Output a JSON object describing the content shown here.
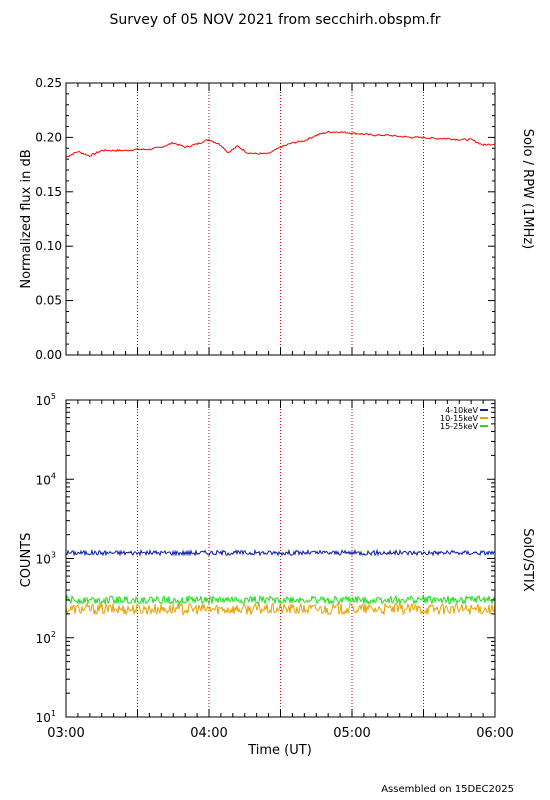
{
  "title": "Survey of 05 NOV 2021 from secchirh.obspm.fr",
  "footer": "Assembled on 15DEC2025",
  "colors": {
    "rpw": "#ff0000",
    "stix_4_10": "#0a1ea0",
    "stix_10_15": "#e8a000",
    "stix_15_25": "#22dd22",
    "marker": "#cc0000"
  },
  "chart_data": [
    {
      "type": "line",
      "ylabel": "Normalized flux in dB",
      "right_label": "Solo / RPW (1MHz)",
      "xlim": [
        "03:00",
        "06:00"
      ],
      "ylim": [
        0.0,
        0.25
      ],
      "y_ticks": [
        "0.00",
        "0.05",
        "0.10",
        "0.15",
        "0.20",
        "0.25"
      ],
      "markers": [
        "03:30",
        "04:00",
        "04:30",
        "05:00",
        "05:30"
      ],
      "series": [
        {
          "color": "#ff0000",
          "x": [
            "03:00",
            "03:05",
            "03:10",
            "03:15",
            "03:20",
            "03:25",
            "03:30",
            "03:35",
            "03:40",
            "03:45",
            "03:50",
            "03:55",
            "04:00",
            "04:05",
            "04:08",
            "04:12",
            "04:16",
            "04:20",
            "04:25",
            "04:30",
            "04:35",
            "04:40",
            "04:45",
            "04:50",
            "04:55",
            "05:00",
            "05:05",
            "05:10",
            "05:15",
            "05:20",
            "05:25",
            "05:30",
            "05:35",
            "05:40",
            "05:45",
            "05:50",
            "05:55",
            "06:00"
          ],
          "values": [
            0.182,
            0.187,
            0.183,
            0.188,
            0.188,
            0.188,
            0.189,
            0.189,
            0.191,
            0.195,
            0.191,
            0.194,
            0.198,
            0.193,
            0.186,
            0.192,
            0.186,
            0.185,
            0.185,
            0.191,
            0.195,
            0.197,
            0.202,
            0.205,
            0.205,
            0.204,
            0.203,
            0.202,
            0.202,
            0.201,
            0.2,
            0.2,
            0.199,
            0.199,
            0.198,
            0.198,
            0.193,
            0.194
          ]
        }
      ]
    },
    {
      "type": "line",
      "ylabel": "COUNTS",
      "right_label": "SolO/STIX",
      "xlabel": "Time (UT)",
      "xlim": [
        "03:00",
        "06:00"
      ],
      "ylim": [
        10,
        100000
      ],
      "yscale": "log",
      "x_ticks": [
        "03:00",
        "04:00",
        "05:00",
        "06:00"
      ],
      "markers": [
        "03:30",
        "04:00",
        "04:30",
        "05:00",
        "05:30"
      ],
      "legend_position": "top-right",
      "series": [
        {
          "name": "4-10keV",
          "color": "#0a1ea0",
          "level": 1180,
          "jitter": 0.03
        },
        {
          "name": "10-15keV",
          "color": "#e8a000",
          "level": 230,
          "jitter": 0.07
        },
        {
          "name": "15-25keV",
          "color": "#22dd22",
          "level": 300,
          "jitter": 0.05
        }
      ]
    }
  ]
}
